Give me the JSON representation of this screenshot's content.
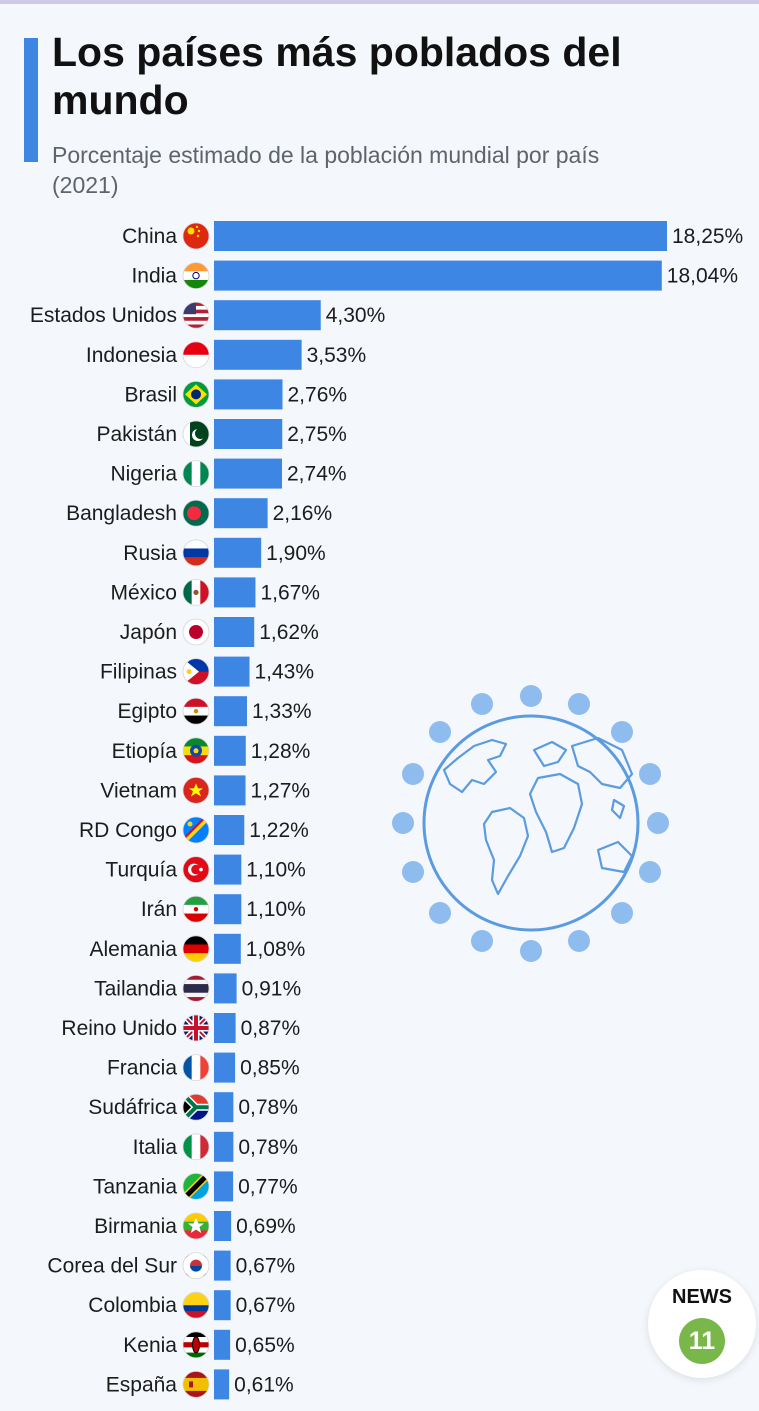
{
  "header": {
    "title": "Los países más poblados del mundo",
    "subtitle": "Porcentaje estimado de la población mundial por país (2021)"
  },
  "badge": {
    "text": "NEWS",
    "number": "11"
  },
  "colors": {
    "bar": "#3d86e3",
    "accent": "#3d86e3",
    "globe": "#5b9be0",
    "dots": "#8fbcee",
    "badge_green": "#79b74a"
  },
  "chart_data": {
    "type": "bar",
    "orientation": "horizontal",
    "categories": [
      "China",
      "India",
      "Estados Unidos",
      "Indonesia",
      "Brasil",
      "Pakistán",
      "Nigeria",
      "Bangladesh",
      "Rusia",
      "México",
      "Japón",
      "Filipinas",
      "Egipto",
      "Etiopía",
      "Vietnam",
      "RD Congo",
      "Turquía",
      "Irán",
      "Alemania",
      "Tailandia",
      "Reino Unido",
      "Francia",
      "Sudáfrica",
      "Italia",
      "Tanzania",
      "Birmania",
      "Corea del Sur",
      "Colombia",
      "Kenia",
      "España"
    ],
    "values": [
      18.25,
      18.04,
      4.3,
      3.53,
      2.76,
      2.75,
      2.74,
      2.16,
      1.9,
      1.67,
      1.62,
      1.43,
      1.33,
      1.28,
      1.27,
      1.22,
      1.1,
      1.1,
      1.08,
      0.91,
      0.87,
      0.85,
      0.78,
      0.78,
      0.77,
      0.69,
      0.67,
      0.67,
      0.65,
      0.61
    ],
    "value_labels": [
      "18,25%",
      "18,04%",
      "4,30%",
      "3,53%",
      "2,76%",
      "2,75%",
      "2,74%",
      "2,16%",
      "1,90%",
      "1,67%",
      "1,62%",
      "1,43%",
      "1,33%",
      "1,28%",
      "1,27%",
      "1,22%",
      "1,10%",
      "1,10%",
      "1,08%",
      "0,91%",
      "0,87%",
      "0,85%",
      "0,78%",
      "0,78%",
      "0,77%",
      "0,69%",
      "0,67%",
      "0,67%",
      "0,65%",
      "0,61%"
    ],
    "flag_icons": [
      "china-flag-icon",
      "india-flag-icon",
      "usa-flag-icon",
      "indonesia-flag-icon",
      "brazil-flag-icon",
      "pakistan-flag-icon",
      "nigeria-flag-icon",
      "bangladesh-flag-icon",
      "russia-flag-icon",
      "mexico-flag-icon",
      "japan-flag-icon",
      "philippines-flag-icon",
      "egypt-flag-icon",
      "ethiopia-flag-icon",
      "vietnam-flag-icon",
      "drc-flag-icon",
      "turkey-flag-icon",
      "iran-flag-icon",
      "germany-flag-icon",
      "thailand-flag-icon",
      "uk-flag-icon",
      "france-flag-icon",
      "south-africa-flag-icon",
      "italy-flag-icon",
      "tanzania-flag-icon",
      "myanmar-flag-icon",
      "south-korea-flag-icon",
      "colombia-flag-icon",
      "kenya-flag-icon",
      "spain-flag-icon"
    ],
    "xlim": [
      0,
      18.25
    ],
    "grid": false,
    "legend": "none"
  }
}
